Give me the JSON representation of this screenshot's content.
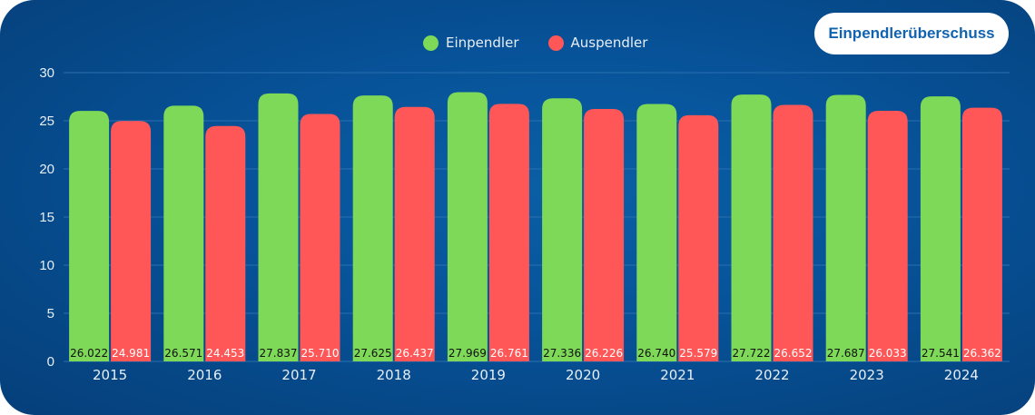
{
  "badge": "Einpendlerüberschuss",
  "colors": {
    "einpendler": "#7dd957",
    "auspendler": "#ff5757",
    "grid": "#2b6fae",
    "text": "#e8eef6"
  },
  "chart_data": {
    "type": "bar",
    "title": "",
    "xlabel": "",
    "ylabel": "",
    "ylim": [
      0,
      30
    ],
    "yticks": [
      "0",
      "5",
      "10",
      "15",
      "20",
      "25",
      "30"
    ],
    "categories": [
      "2015",
      "2016",
      "2017",
      "2018",
      "2019",
      "2020",
      "2021",
      "2022",
      "2023",
      "2024"
    ],
    "legend_position": "top-center",
    "grid": true,
    "series": [
      {
        "name": "Einpendler",
        "values": [
          26.022,
          26.571,
          27.837,
          27.625,
          27.969,
          27.336,
          26.74,
          27.722,
          27.687,
          27.541
        ],
        "labels": [
          "26.022",
          "26.571",
          "27.837",
          "27.625",
          "27.969",
          "27.336",
          "26.740",
          "27.722",
          "27.687",
          "27.541"
        ]
      },
      {
        "name": "Auspendler",
        "values": [
          24.981,
          24.453,
          25.71,
          26.437,
          26.761,
          26.226,
          25.579,
          26.652,
          26.033,
          26.362
        ],
        "labels": [
          "24.981",
          "24.453",
          "25.710",
          "26.437",
          "26.761",
          "26.226",
          "25.579",
          "26.652",
          "26.033",
          "26.362"
        ]
      }
    ]
  }
}
